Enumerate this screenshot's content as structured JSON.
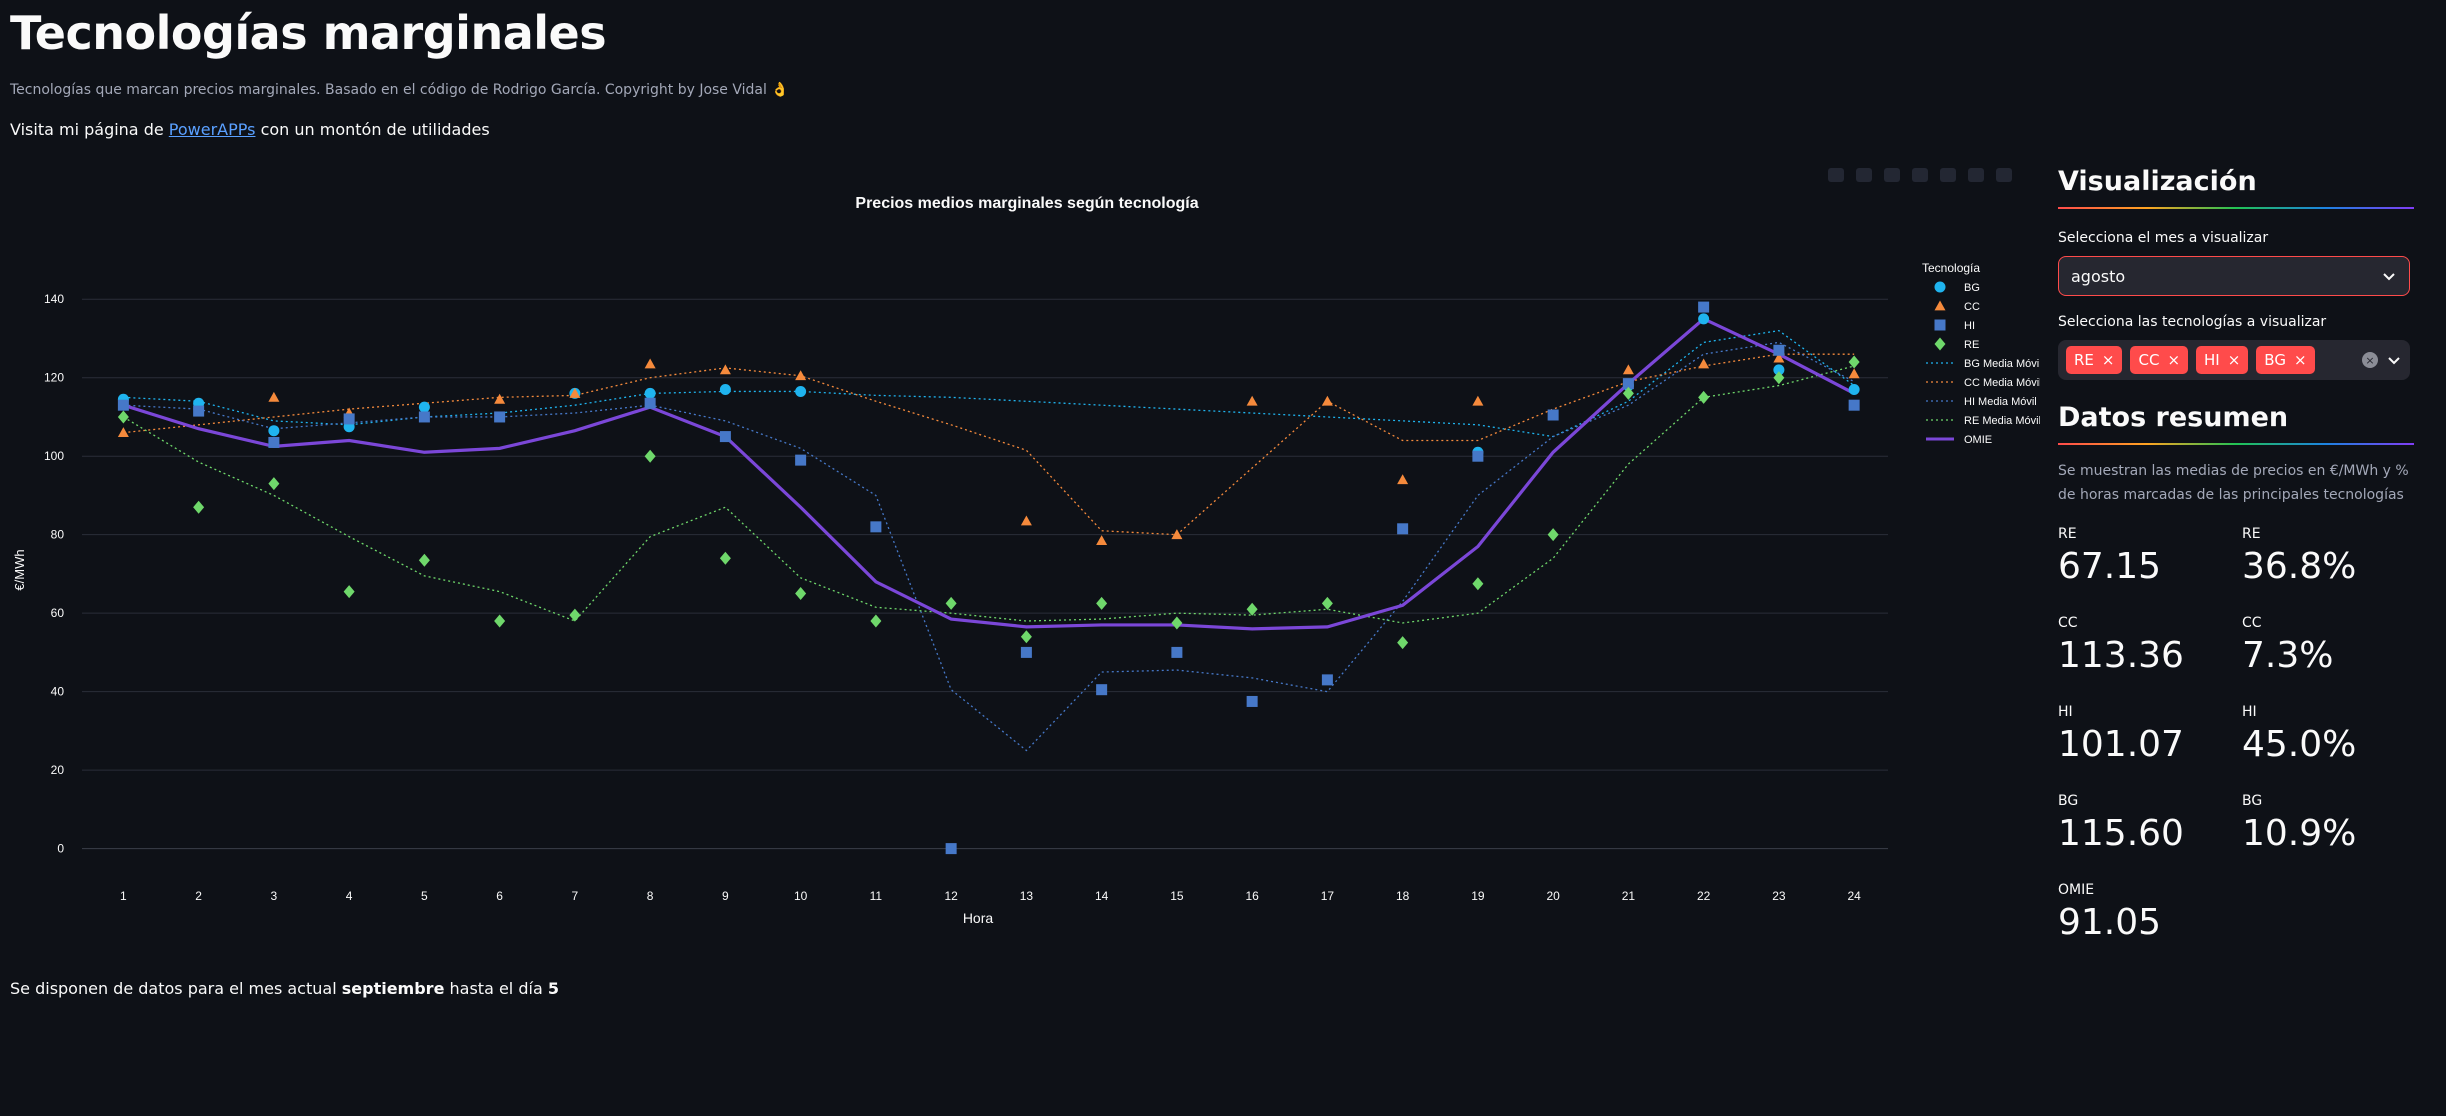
{
  "page": {
    "title": "Tecnologías marginales",
    "subtitle": "Tecnologías que marcan precios marginales. Basado en el código de Rodrigo García. Copyright by Jose Vidal 👌",
    "visit_prefix": "Visita mi página de",
    "visit_link": "PowerAPPs",
    "visit_suffix": "con un montón de utilidades",
    "note_prefix": "Se disponen de datos para el mes actual",
    "note_month": "septiembre",
    "note_mid": "hasta el día",
    "note_day": "5"
  },
  "sidebar": {
    "vis_title": "Visualización",
    "month_label": "Selecciona el mes a visualizar",
    "month_value": "agosto",
    "tech_label": "Selecciona las tecnologías a visualizar",
    "tech_tags": [
      "RE",
      "CC",
      "HI",
      "BG"
    ],
    "summary_title": "Datos resumen",
    "summary_desc": "Se muestran las medias de precios en €/MWh y % de horas marcadas de las principales tecnologías",
    "metrics": [
      {
        "label": "RE",
        "value": "67.15"
      },
      {
        "label": "RE",
        "value": "36.8%"
      },
      {
        "label": "CC",
        "value": "113.36"
      },
      {
        "label": "CC",
        "value": "7.3%"
      },
      {
        "label": "HI",
        "value": "101.07"
      },
      {
        "label": "HI",
        "value": "45.0%"
      },
      {
        "label": "BG",
        "value": "115.60"
      },
      {
        "label": "BG",
        "value": "10.9%"
      },
      {
        "label": "OMIE",
        "value": "91.05"
      }
    ]
  },
  "chart_data": {
    "type": "scatter",
    "title": "Precios medios marginales según tecnología",
    "xlabel": "Hora",
    "ylabel": "€/MWh",
    "ylim": [
      -8,
      150
    ],
    "yticks": [
      0,
      20,
      40,
      60,
      80,
      100,
      120,
      140
    ],
    "x": [
      1,
      2,
      3,
      4,
      5,
      6,
      7,
      8,
      9,
      10,
      11,
      12,
      13,
      14,
      15,
      16,
      17,
      18,
      19,
      20,
      21,
      22,
      23,
      24
    ],
    "legend_title": "Tecnología",
    "legend_position": "right",
    "grid": true,
    "colors": {
      "BG": "#1fb4ef",
      "CC": "#f58a3c",
      "HI": "#4678c8",
      "RE": "#6fd86b",
      "OMIE": "#7b47d8"
    },
    "series": [
      {
        "name": "BG",
        "kind": "markers",
        "marker": "circle",
        "x": [
          1,
          2,
          3,
          4,
          5,
          7,
          8,
          9,
          10,
          19,
          21,
          22,
          23,
          24
        ],
        "values": [
          114.5,
          113.5,
          106.5,
          107.5,
          112.5,
          116,
          116,
          117,
          116.5,
          101,
          118,
          135,
          122,
          117
        ]
      },
      {
        "name": "CC",
        "kind": "markers",
        "marker": "triangle",
        "x": [
          1,
          3,
          4,
          6,
          7,
          8,
          9,
          10,
          13,
          14,
          15,
          16,
          17,
          18,
          19,
          21,
          22,
          23,
          24
        ],
        "values": [
          106,
          115,
          111,
          114.5,
          116,
          123.5,
          122,
          120.5,
          83.5,
          78.5,
          80,
          114,
          114,
          94,
          114,
          122,
          123.5,
          125,
          121
        ]
      },
      {
        "name": "HI",
        "kind": "markers",
        "marker": "square",
        "x": [
          1,
          2,
          3,
          4,
          5,
          6,
          8,
          9,
          10,
          11,
          12,
          13,
          14,
          15,
          16,
          17,
          18,
          19,
          20,
          21,
          22,
          23,
          24
        ],
        "values": [
          113,
          111.5,
          103.5,
          109.5,
          110,
          110,
          113.5,
          105,
          99,
          82,
          0,
          50,
          40.5,
          50,
          37.5,
          43,
          81.5,
          100,
          110.5,
          118.5,
          138,
          127,
          113
        ]
      },
      {
        "name": "RE",
        "kind": "markers",
        "marker": "diamond",
        "x": [
          1,
          2,
          3,
          4,
          5,
          6,
          7,
          8,
          9,
          10,
          11,
          12,
          13,
          14,
          15,
          16,
          17,
          18,
          19,
          20,
          21,
          22,
          23,
          24
        ],
        "values": [
          110,
          87,
          93,
          65.5,
          73.5,
          58,
          59.5,
          100,
          74,
          65,
          58,
          62.5,
          54,
          62.5,
          57.5,
          61,
          62.5,
          52.5,
          67.5,
          80,
          116,
          115,
          120,
          124
        ]
      },
      {
        "name": "BG Media Móvil",
        "kind": "dotted",
        "color_key": "BG",
        "x": [
          1,
          2,
          3,
          4,
          5,
          6,
          7,
          8,
          9,
          10,
          11,
          12,
          13,
          14,
          15,
          16,
          17,
          18,
          19,
          20,
          21,
          22,
          23,
          24
        ],
        "values": [
          115,
          114,
          109,
          108,
          110,
          111,
          113,
          116,
          116.5,
          116.5,
          115.5,
          115,
          114,
          113,
          112,
          111,
          110,
          109,
          108,
          105,
          114,
          129,
          132,
          118
        ]
      },
      {
        "name": "CC Media Móvil",
        "kind": "dotted",
        "color_key": "CC",
        "x": [
          1,
          2,
          3,
          4,
          5,
          6,
          7,
          8,
          9,
          10,
          11,
          12,
          13,
          14,
          15,
          16,
          17,
          18,
          19,
          20,
          21,
          22,
          23,
          24
        ],
        "values": [
          106,
          108,
          110,
          112,
          113.5,
          115,
          115.5,
          120,
          122.5,
          120.5,
          114,
          108,
          101.5,
          81,
          80,
          97,
          114,
          104,
          104,
          112,
          119,
          123,
          126,
          126
        ]
      },
      {
        "name": "HI Media Móvil",
        "kind": "dotted",
        "color_key": "HI",
        "x": [
          1,
          2,
          3,
          4,
          5,
          6,
          7,
          8,
          9,
          10,
          11,
          12,
          13,
          14,
          15,
          16,
          17,
          18,
          19,
          20,
          21,
          22,
          23,
          24
        ],
        "values": [
          113,
          112,
          107,
          108.5,
          110,
          110,
          111,
          113,
          109,
          102,
          90,
          40.5,
          25,
          45,
          45.5,
          43.5,
          40,
          63,
          90,
          105,
          113,
          126,
          129,
          119
        ]
      },
      {
        "name": "RE Media Móvil",
        "kind": "dotted",
        "color_key": "RE",
        "x": [
          1,
          2,
          3,
          4,
          5,
          6,
          7,
          8,
          9,
          10,
          11,
          12,
          13,
          14,
          15,
          16,
          17,
          18,
          19,
          20,
          21,
          22,
          23,
          24
        ],
        "values": [
          110,
          98.5,
          90,
          79.5,
          69.5,
          65.5,
          58,
          79.5,
          87,
          69,
          61.5,
          60,
          58,
          58.5,
          60,
          59.5,
          61,
          57.5,
          60,
          74,
          98,
          115,
          118,
          123
        ]
      },
      {
        "name": "OMIE",
        "kind": "line",
        "color_key": "OMIE",
        "x": [
          1,
          2,
          3,
          4,
          5,
          6,
          7,
          8,
          9,
          10,
          11,
          12,
          13,
          14,
          15,
          16,
          17,
          18,
          19,
          20,
          21,
          22,
          23,
          24
        ],
        "values": [
          113,
          107,
          102.5,
          104,
          101,
          102,
          106.5,
          112.5,
          105,
          87,
          68,
          58.5,
          56.5,
          57,
          57,
          56,
          56.5,
          62,
          77,
          101,
          118.5,
          135,
          126,
          116
        ]
      }
    ]
  }
}
